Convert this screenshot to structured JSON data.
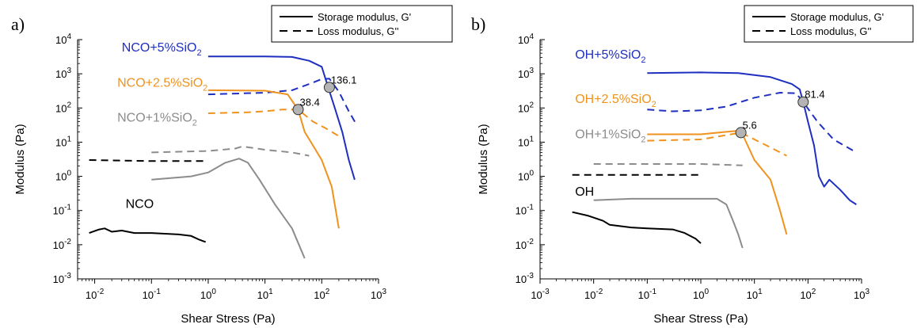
{
  "colors": {
    "blue": "#1f2fc0",
    "orange": "#f0921e",
    "gray": "#8c8c8c",
    "black": "#000000",
    "marker_fill": "#b4b4b4"
  },
  "chart_data": [
    {
      "panel": "a)",
      "type": "line",
      "x_scale": "log",
      "y_scale": "log",
      "xlim": [
        0.005,
        1000
      ],
      "ylim": [
        0.001,
        10000
      ],
      "xlabel": "Shear Stress (Pa)",
      "ylabel": "Modulus (Pa)",
      "x_ticks": [
        {
          "value": 0.01,
          "base": "10",
          "exp": "-2"
        },
        {
          "value": 0.1,
          "base": "10",
          "exp": "-1"
        },
        {
          "value": 1,
          "base": "10",
          "exp": "0"
        },
        {
          "value": 10,
          "base": "10",
          "exp": "1"
        },
        {
          "value": 100,
          "base": "10",
          "exp": "2"
        },
        {
          "value": 1000,
          "base": "10",
          "exp": "3"
        }
      ],
      "y_ticks": [
        {
          "value": 0.001,
          "base": "10",
          "exp": "-3"
        },
        {
          "value": 0.01,
          "base": "10",
          "exp": "-2"
        },
        {
          "value": 0.1,
          "base": "10",
          "exp": "-1"
        },
        {
          "value": 1,
          "base": "10",
          "exp": "0"
        },
        {
          "value": 10,
          "base": "10",
          "exp": "1"
        },
        {
          "value": 100,
          "base": "10",
          "exp": "2"
        },
        {
          "value": 1000,
          "base": "10",
          "exp": "3"
        },
        {
          "value": 10000,
          "base": "10",
          "exp": "4"
        }
      ],
      "legend": {
        "placement": "top-right",
        "entries": [
          {
            "label": "Storage modulus, G'",
            "style": "solid"
          },
          {
            "label": "Loss modulus, G''",
            "style": "dashed"
          }
        ]
      },
      "series": [
        {
          "id": "nco5-g1",
          "color": "blue",
          "style": "solid",
          "points": [
            [
              1,
              3200
            ],
            [
              10,
              3200
            ],
            [
              30,
              3100
            ],
            [
              60,
              2400
            ],
            [
              100,
              1600
            ],
            [
              130,
              400
            ],
            [
              170,
              100
            ],
            [
              230,
              20
            ],
            [
              300,
              3
            ],
            [
              380,
              0.8
            ]
          ]
        },
        {
          "id": "nco5-g2",
          "color": "blue",
          "style": "dashed",
          "points": [
            [
              1,
              250
            ],
            [
              10,
              280
            ],
            [
              30,
              330
            ],
            [
              60,
              500
            ],
            [
              100,
              700
            ],
            [
              136,
              720
            ],
            [
              200,
              300
            ],
            [
              300,
              80
            ],
            [
              400,
              35
            ]
          ]
        },
        {
          "id": "nco25-g1",
          "color": "orange",
          "style": "solid",
          "points": [
            [
              1,
              330
            ],
            [
              10,
              320
            ],
            [
              25,
              250
            ],
            [
              38.4,
              90
            ],
            [
              50,
              20
            ],
            [
              70,
              8
            ],
            [
              100,
              3
            ],
            [
              150,
              0.5
            ],
            [
              200,
              0.03
            ]
          ]
        },
        {
          "id": "nco25-g2",
          "color": "orange",
          "style": "dashed",
          "points": [
            [
              1,
              70
            ],
            [
              5,
              75
            ],
            [
              10,
              80
            ],
            [
              20,
              90
            ],
            [
              38.4,
              90
            ],
            [
              70,
              40
            ],
            [
              120,
              25
            ],
            [
              200,
              15
            ]
          ]
        },
        {
          "id": "nco1-g1",
          "color": "gray",
          "style": "solid",
          "points": [
            [
              0.1,
              0.8
            ],
            [
              0.5,
              1
            ],
            [
              1,
              1.3
            ],
            [
              2,
              2.5
            ],
            [
              3.5,
              3.3
            ],
            [
              5,
              2.5
            ],
            [
              8,
              0.8
            ],
            [
              15,
              0.15
            ],
            [
              30,
              0.03
            ],
            [
              50,
              0.004
            ]
          ]
        },
        {
          "id": "nco1-g2",
          "color": "gray",
          "style": "dashed",
          "points": [
            [
              0.1,
              5
            ],
            [
              1,
              5.5
            ],
            [
              3,
              6.5
            ],
            [
              4,
              7.5
            ],
            [
              10,
              6
            ],
            [
              30,
              5
            ],
            [
              60,
              4
            ]
          ]
        },
        {
          "id": "nco-g1",
          "color": "black",
          "style": "solid",
          "points": [
            [
              0.008,
              0.022
            ],
            [
              0.012,
              0.028
            ],
            [
              0.015,
              0.03
            ],
            [
              0.02,
              0.024
            ],
            [
              0.03,
              0.026
            ],
            [
              0.05,
              0.022
            ],
            [
              0.1,
              0.022
            ],
            [
              0.3,
              0.02
            ],
            [
              0.5,
              0.018
            ],
            [
              0.7,
              0.014
            ],
            [
              0.9,
              0.012
            ]
          ]
        },
        {
          "id": "nco-g2",
          "color": "black",
          "style": "dashed",
          "points": [
            [
              0.008,
              3
            ],
            [
              0.1,
              2.8
            ],
            [
              0.9,
              2.8
            ]
          ]
        }
      ],
      "crossovers": [
        {
          "x": 136.1,
          "y": 400,
          "label": "136.1"
        },
        {
          "x": 38.4,
          "y": 90,
          "label": "38.4"
        }
      ],
      "series_labels": [
        {
          "text": "NCO+5%SiO",
          "sub": "2",
          "color": "blue",
          "at": [
            0.03,
            4500
          ]
        },
        {
          "text": "NCO+2.5%SiO",
          "sub": "2",
          "color": "orange",
          "at": [
            0.025,
            420
          ]
        },
        {
          "text": "NCO+1%SiO",
          "sub": "2",
          "color": "gray",
          "at": [
            0.025,
            40
          ]
        },
        {
          "text": "NCO",
          "sub": "",
          "color": "black",
          "at": [
            0.035,
            0.12
          ]
        }
      ]
    },
    {
      "panel": "b)",
      "type": "line",
      "x_scale": "log",
      "y_scale": "log",
      "xlim": [
        0.001,
        1000
      ],
      "ylim": [
        0.001,
        10000
      ],
      "xlabel": "Shear Stress (Pa)",
      "ylabel": "Modulus (Pa)",
      "x_ticks": [
        {
          "value": 0.001,
          "base": "10",
          "exp": "-3"
        },
        {
          "value": 0.01,
          "base": "10",
          "exp": "-2"
        },
        {
          "value": 0.1,
          "base": "10",
          "exp": "-1"
        },
        {
          "value": 1,
          "base": "10",
          "exp": "0"
        },
        {
          "value": 10,
          "base": "10",
          "exp": "1"
        },
        {
          "value": 100,
          "base": "10",
          "exp": "2"
        },
        {
          "value": 1000,
          "base": "10",
          "exp": "3"
        }
      ],
      "y_ticks": [
        {
          "value": 0.001,
          "base": "10",
          "exp": "-3"
        },
        {
          "value": 0.01,
          "base": "10",
          "exp": "-2"
        },
        {
          "value": 0.1,
          "base": "10",
          "exp": "-1"
        },
        {
          "value": 1,
          "base": "10",
          "exp": "0"
        },
        {
          "value": 10,
          "base": "10",
          "exp": "1"
        },
        {
          "value": 100,
          "base": "10",
          "exp": "2"
        },
        {
          "value": 1000,
          "base": "10",
          "exp": "3"
        },
        {
          "value": 10000,
          "base": "10",
          "exp": "4"
        }
      ],
      "legend": {
        "placement": "top-right",
        "entries": [
          {
            "label": "Storage modulus, G'",
            "style": "solid"
          },
          {
            "label": "Loss modulus, G''",
            "style": "dashed"
          }
        ]
      },
      "series": [
        {
          "id": "oh5-g1",
          "color": "blue",
          "style": "solid",
          "points": [
            [
              0.1,
              1050
            ],
            [
              1,
              1100
            ],
            [
              5,
              1050
            ],
            [
              20,
              800
            ],
            [
              50,
              500
            ],
            [
              70,
              350
            ],
            [
              81.4,
              150
            ],
            [
              100,
              40
            ],
            [
              130,
              8
            ],
            [
              160,
              1
            ],
            [
              200,
              0.5
            ],
            [
              250,
              0.8
            ],
            [
              400,
              0.4
            ],
            [
              600,
              0.2
            ],
            [
              800,
              0.15
            ]
          ]
        },
        {
          "id": "oh5-g2",
          "color": "blue",
          "style": "dashed",
          "points": [
            [
              0.1,
              90
            ],
            [
              0.3,
              80
            ],
            [
              1,
              85
            ],
            [
              3,
              110
            ],
            [
              10,
              200
            ],
            [
              30,
              280
            ],
            [
              60,
              270
            ],
            [
              81.4,
              150
            ],
            [
              150,
              40
            ],
            [
              300,
              12
            ],
            [
              800,
              5
            ]
          ]
        },
        {
          "id": "oh25-g1",
          "color": "orange",
          "style": "solid",
          "points": [
            [
              0.1,
              17
            ],
            [
              1,
              17
            ],
            [
              3,
              20
            ],
            [
              5.6,
              22
            ],
            [
              7,
              10
            ],
            [
              10,
              3
            ],
            [
              20,
              0.8
            ],
            [
              30,
              0.1
            ],
            [
              40,
              0.02
            ]
          ]
        },
        {
          "id": "oh25-g2",
          "color": "orange",
          "style": "dashed",
          "points": [
            [
              0.1,
              11
            ],
            [
              1,
              12
            ],
            [
              5.6,
              19
            ],
            [
              10,
              12
            ],
            [
              20,
              7
            ],
            [
              40,
              4
            ]
          ]
        },
        {
          "id": "oh1-g1",
          "color": "gray",
          "style": "solid",
          "points": [
            [
              0.01,
              0.2
            ],
            [
              0.05,
              0.22
            ],
            [
              0.5,
              0.22
            ],
            [
              2,
              0.22
            ],
            [
              3,
              0.15
            ],
            [
              4,
              0.05
            ],
            [
              5,
              0.02
            ],
            [
              6,
              0.008
            ]
          ]
        },
        {
          "id": "oh1-g2",
          "color": "gray",
          "style": "dashed",
          "points": [
            [
              0.01,
              2.3
            ],
            [
              1,
              2.3
            ],
            [
              6,
              2.1
            ]
          ]
        },
        {
          "id": "oh-g1",
          "color": "black",
          "style": "solid",
          "points": [
            [
              0.004,
              0.09
            ],
            [
              0.008,
              0.07
            ],
            [
              0.015,
              0.05
            ],
            [
              0.02,
              0.038
            ],
            [
              0.05,
              0.032
            ],
            [
              0.1,
              0.03
            ],
            [
              0.3,
              0.028
            ],
            [
              0.5,
              0.022
            ],
            [
              0.8,
              0.015
            ],
            [
              1,
              0.011
            ]
          ]
        },
        {
          "id": "oh-g2",
          "color": "black",
          "style": "dashed",
          "points": [
            [
              0.004,
              1.1
            ],
            [
              1,
              1.1
            ]
          ]
        }
      ],
      "crossovers": [
        {
          "x": 81.4,
          "y": 150,
          "label": "81.4"
        },
        {
          "x": 5.6,
          "y": 19,
          "label": "5.6"
        }
      ],
      "series_labels": [
        {
          "text": "OH+5%SiO",
          "sub": "2",
          "color": "blue",
          "at": [
            0.0045,
            2800
          ]
        },
        {
          "text": "OH+2.5%SiO",
          "sub": "2",
          "color": "orange",
          "at": [
            0.0045,
            140
          ]
        },
        {
          "text": "OH+1%SiO",
          "sub": "2",
          "color": "gray",
          "at": [
            0.0045,
            13
          ]
        },
        {
          "text": "OH",
          "sub": "",
          "color": "black",
          "at": [
            0.0045,
            0.27
          ]
        }
      ]
    }
  ]
}
